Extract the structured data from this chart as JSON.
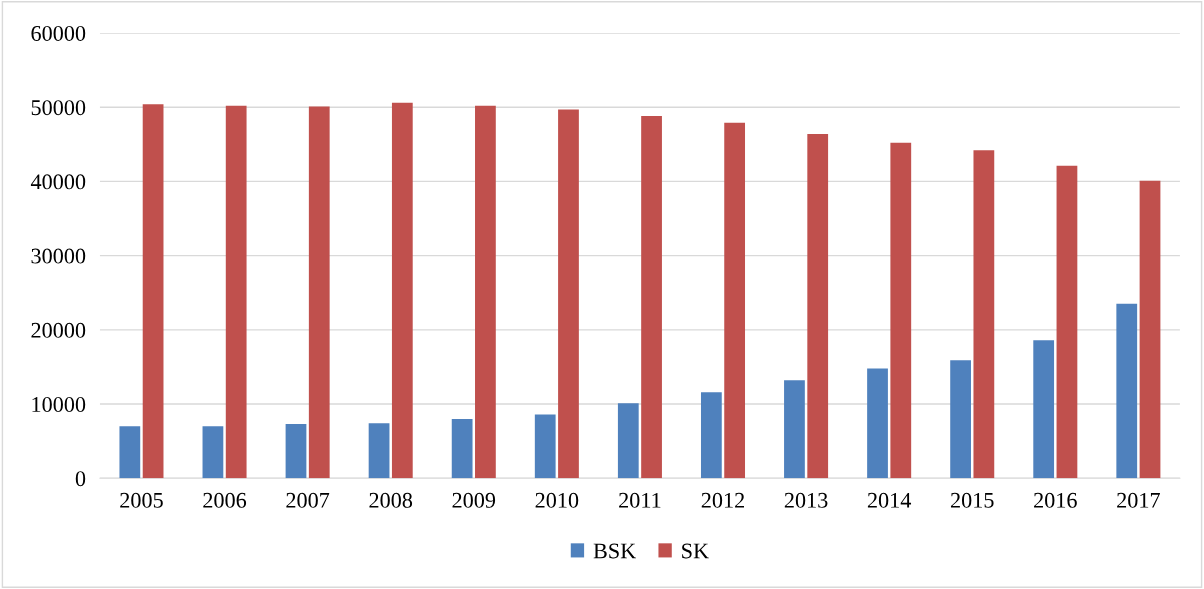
{
  "chart_data": {
    "type": "bar",
    "categories": [
      "2005",
      "2006",
      "2007",
      "2008",
      "2009",
      "2010",
      "2011",
      "2012",
      "2013",
      "2014",
      "2015",
      "2016",
      "2017"
    ],
    "series": [
      {
        "name": "BSK",
        "color": "#4f81bd",
        "values": [
          7000,
          7000,
          7300,
          7400,
          8000,
          8600,
          10100,
          11600,
          13200,
          14800,
          15900,
          18600,
          23500
        ]
      },
      {
        "name": "SK",
        "color": "#c0504d",
        "values": [
          50400,
          50200,
          50100,
          50600,
          50200,
          49700,
          48800,
          47900,
          46400,
          45200,
          44200,
          42100,
          40100
        ]
      }
    ],
    "ylim": [
      0,
      60000
    ],
    "yticks": [
      0,
      10000,
      20000,
      30000,
      40000,
      50000,
      60000
    ],
    "grid": "y",
    "legend": "bottom"
  }
}
